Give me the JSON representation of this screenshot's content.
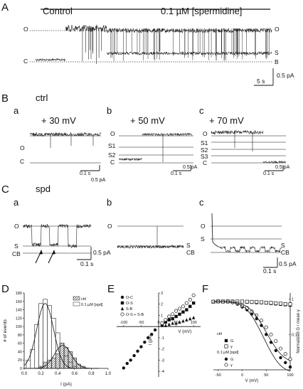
{
  "panels": {
    "A": {
      "letter": "A",
      "control_label": "Control",
      "drug_label": "0.1 µM [spermidine]",
      "left_levels": [
        "O",
        "C"
      ],
      "right_levels": [
        "O",
        "S",
        "B"
      ],
      "scale_time": "5 s",
      "scale_current": "0.5 pA"
    },
    "B": {
      "letter": "B",
      "title": "ctrl",
      "a": {
        "letter": "a",
        "voltage": "+ 30 mV",
        "levels": [
          "O",
          "C"
        ],
        "scale_time": "0.1 s",
        "scale_current": "0.5 pA"
      },
      "b": {
        "letter": "b",
        "voltage": "+ 50 mV",
        "levels": [
          "O",
          "S1",
          "S2",
          "C"
        ],
        "scale_time": "0.1 s",
        "scale_current": "0.5 pA"
      },
      "c": {
        "letter": "c",
        "voltage": "+ 70 mV",
        "levels": [
          "O",
          "S1",
          "S2",
          "S3",
          "C"
        ],
        "scale_time": "0.1 s",
        "scale_current": "0.5 pA"
      }
    },
    "C": {
      "letter": "C",
      "title": "spd",
      "a": {
        "letter": "a",
        "levels": [
          "O",
          "S",
          "CB"
        ],
        "scale_time": "0.1 s",
        "scale_current": "0.5 pA"
      },
      "b": {
        "letter": "b",
        "levels": [
          "O",
          "S",
          "CB"
        ],
        "scale_time": "0.1 s",
        "scale_current": "0.5 pA"
      },
      "c": {
        "letter": "c",
        "levels": [
          "O",
          "S",
          "S",
          "CB"
        ],
        "scale_time": "0.1 s",
        "scale_current": "0.5 pA"
      }
    },
    "D": {
      "letter": "D"
    },
    "E": {
      "letter": "E"
    },
    "F": {
      "letter": "F"
    }
  },
  "chart_data": [
    {
      "panel": "D",
      "type": "bar",
      "xlabel": "I (pA)",
      "ylabel": "# of events",
      "xlim": [
        0,
        1.0
      ],
      "ylim": [
        0,
        180
      ],
      "xticks": [
        "0.0",
        "0.2",
        "0.4",
        "0.6",
        "0.8",
        "1.0"
      ],
      "yticks": [
        "0",
        "20",
        "40",
        "60",
        "80",
        "100",
        "120",
        "140",
        "160",
        "180"
      ],
      "legend": [
        "ctrl",
        "0.1 µM [spd]"
      ],
      "bin_width": 0.05,
      "series": [
        {
          "name": "ctrl",
          "x": [
            0.2,
            0.25,
            0.3,
            0.35,
            0.4,
            0.45,
            0.5,
            0.55,
            0.6,
            0.65,
            0.7
          ],
          "values": [
            5,
            15,
            20,
            25,
            35,
            60,
            50,
            40,
            25,
            10,
            5
          ]
        },
        {
          "name": "0.1 µM [spd]",
          "x": [
            0.05,
            0.1,
            0.15,
            0.2,
            0.25,
            0.3,
            0.35,
            0.4,
            0.45,
            0.5,
            0.55,
            0.6
          ],
          "values": [
            20,
            45,
            105,
            155,
            165,
            150,
            120,
            85,
            60,
            30,
            15,
            5
          ]
        }
      ]
    },
    {
      "panel": "E",
      "type": "scatter",
      "xlabel": "V (mV)",
      "ylabel": "i (pA)",
      "xlim": [
        -120,
        120
      ],
      "ylim": [
        -4.5,
        3
      ],
      "xticks": [
        "-100",
        "-50",
        "0",
        "50",
        "100"
      ],
      "yticks": [
        "-4",
        "-3",
        "-2",
        "-1",
        "1",
        "2",
        "3"
      ],
      "legend_position": "top-left",
      "series": [
        {
          "name": "O-C",
          "marker": "filled-circle",
          "x": [
            -100,
            -90,
            -80,
            -70,
            -60,
            -50,
            -40,
            -30,
            -20,
            -10
          ],
          "y": [
            -3.7,
            -3.3,
            -3.0,
            -2.6,
            -2.2,
            -1.8,
            -1.4,
            -1.0,
            -0.7,
            -0.3
          ]
        },
        {
          "name": "O-S",
          "marker": "filled-square",
          "x": [
            10,
            20,
            30,
            40,
            50,
            60,
            70,
            80,
            90,
            100
          ],
          "y": [
            0.2,
            0.4,
            0.6,
            0.7,
            0.9,
            1.1,
            1.3,
            1.5,
            1.8,
            2.1
          ]
        },
        {
          "name": "S-B",
          "marker": "filled-triangle",
          "x": [
            10,
            20,
            30,
            40,
            50,
            60,
            70,
            80,
            90,
            100
          ],
          "y": [
            0.1,
            0.1,
            0.2,
            0.3,
            0.3,
            0.4,
            0.5,
            0.6,
            0.7,
            0.8
          ]
        },
        {
          "name": "O-S + S-B",
          "marker": "open-circle",
          "x": [
            10,
            20,
            30,
            40,
            50,
            60,
            70,
            80,
            90,
            100
          ],
          "y": [
            0.3,
            0.6,
            0.9,
            1.1,
            1.4,
            1.6,
            1.8,
            2.1,
            2.4,
            2.8
          ]
        }
      ]
    },
    {
      "panel": "F",
      "type": "scatter",
      "xlabel": "V (mV)",
      "ylabel": "Normalized G / mean γ",
      "xlim": [
        -60,
        100
      ],
      "ylim": [
        0.01,
        1.5
      ],
      "y_scale": "log",
      "xticks": [
        "-50",
        "0",
        "50",
        "100"
      ],
      "yticks": [
        "1",
        "0.1"
      ],
      "legend_groups": [
        "ctrl",
        "0.1 µM [spd]"
      ],
      "legend_position": "bottom-left",
      "series": [
        {
          "name": "G",
          "group": "ctrl",
          "marker": "filled-square",
          "x": [
            -60,
            -50,
            -40,
            -30,
            -20,
            -10,
            0,
            10,
            20,
            30,
            40,
            50,
            60,
            70,
            80,
            90,
            100
          ],
          "y": [
            0.85,
            0.85,
            0.85,
            0.85,
            0.85,
            0.85,
            0.85,
            0.83,
            0.82,
            0.8,
            0.8,
            0.78,
            0.76,
            0.74,
            0.72,
            0.7,
            0.68
          ]
        },
        {
          "name": "γ",
          "group": "ctrl",
          "marker": "open-square",
          "x": [
            -60,
            -50,
            -40,
            -30,
            -20,
            -10,
            0,
            10,
            20,
            30,
            40,
            50,
            60,
            70,
            80,
            90,
            100
          ],
          "y": [
            0.85,
            0.87,
            0.86,
            0.87,
            0.86,
            0.86,
            0.86,
            0.85,
            0.84,
            0.84,
            0.82,
            0.8,
            0.79,
            0.77,
            0.75,
            0.73,
            0.72
          ]
        },
        {
          "name": "G",
          "group": "0.1 µM [spd]",
          "marker": "filled-circle",
          "x": [
            -60,
            -50,
            -40,
            -30,
            -20,
            -10,
            0,
            10,
            20,
            30,
            40,
            50,
            60,
            70,
            80,
            90,
            100
          ],
          "y": [
            0.85,
            0.85,
            0.84,
            0.83,
            0.8,
            0.72,
            0.6,
            0.5,
            0.38,
            0.28,
            0.18,
            0.1,
            0.06,
            0.035,
            0.022,
            0.016,
            0.012
          ]
        },
        {
          "name": "γ",
          "group": "0.1 µM [spd]",
          "marker": "open-circle",
          "x": [
            -60,
            -50,
            -40,
            -30,
            -20,
            -10,
            0,
            10,
            20,
            30,
            40,
            50,
            60,
            70,
            80,
            90,
            100
          ],
          "y": [
            0.86,
            0.86,
            0.85,
            0.84,
            0.82,
            0.76,
            0.65,
            0.56,
            0.45,
            0.35,
            0.25,
            0.16,
            0.1,
            0.065,
            0.04,
            0.028,
            0.02
          ]
        }
      ]
    }
  ]
}
